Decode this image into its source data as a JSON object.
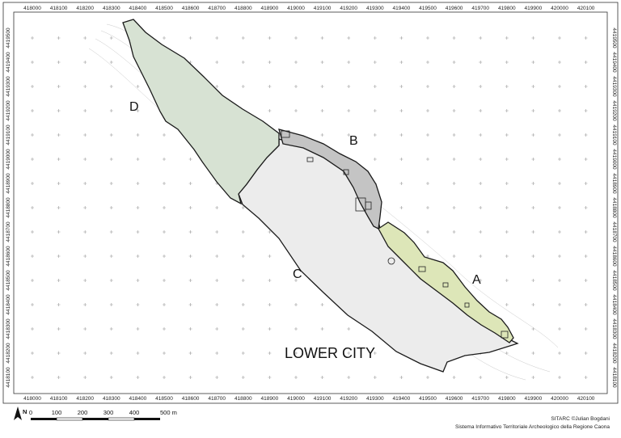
{
  "map": {
    "top_ticks": [
      "418000",
      "418100",
      "418200",
      "418300",
      "418400",
      "418500",
      "418600",
      "418700",
      "418800",
      "418900",
      "419000",
      "419100",
      "419200",
      "419300",
      "419400",
      "419500",
      "419600",
      "419700",
      "419800",
      "419900",
      "420000",
      "420100"
    ],
    "bottom_ticks": [
      "418000",
      "418100",
      "418200",
      "418300",
      "418400",
      "418500",
      "418600",
      "418700",
      "418800",
      "418900",
      "419000",
      "419100",
      "419200",
      "419300",
      "419400",
      "419500",
      "419600",
      "419700",
      "419800",
      "419900",
      "420000",
      "420100"
    ],
    "left_ticks": [
      "4419500",
      "4419400",
      "4419300",
      "4419200",
      "4419100",
      "4419000",
      "4418900",
      "4418800",
      "4418700",
      "4418600",
      "4418500",
      "4418400",
      "4418300",
      "4418200",
      "4418100"
    ],
    "right_ticks": [
      "4419500",
      "4419400",
      "4419300",
      "4419200",
      "4419100",
      "4419000",
      "4418900",
      "4418800",
      "4418700",
      "4418600",
      "4418500",
      "4418400",
      "4418300",
      "4418200",
      "4418100"
    ],
    "zones": {
      "a": "A",
      "b": "B",
      "c": "C",
      "d": "D",
      "lower_city": "LOWER CITY"
    },
    "colors": {
      "zone_a": "#dde6b8",
      "zone_b": "#c4c4c4",
      "zone_c": "#ececec",
      "zone_d": "#d7e2d3",
      "outline": "#1a1a1a",
      "grid_cross": "#9a9a9a"
    }
  },
  "scale_bar": {
    "north": "N",
    "labels": [
      "0",
      "100",
      "200",
      "300",
      "400",
      "500 m"
    ]
  },
  "credit": {
    "line1": "SITARC ©Julian Bogdani",
    "line2": "Sistema Informativo Territoriale Archeologico della Regione Caona"
  }
}
